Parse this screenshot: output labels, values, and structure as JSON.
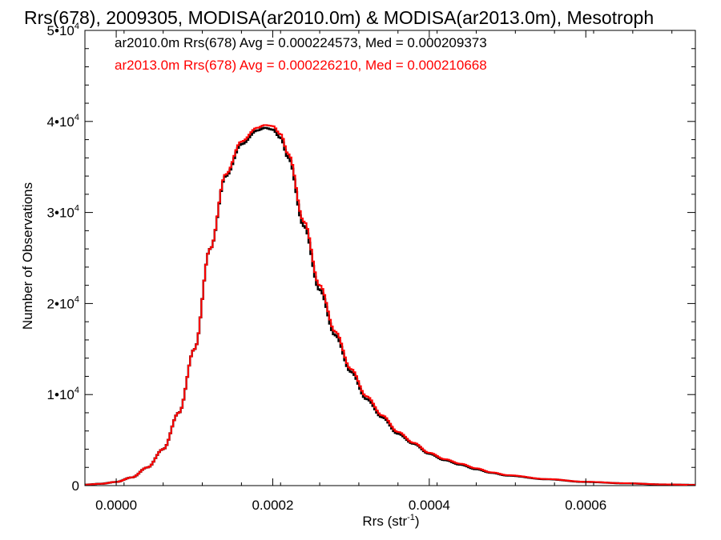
{
  "chart_data": {
    "type": "line",
    "step": true,
    "title": "Rrs(678), 2009305, MODISA(ar2010.0m) & MODISA(ar2013.0m), Mesotroph",
    "xlabel": "Rrs (str",
    "xlabel_sup": "-1",
    "xlabel_suffix": ")",
    "ylabel": "Number of Observations",
    "xlim": [
      -4e-05,
      0.00074
    ],
    "ylim": [
      0,
      50000
    ],
    "x_ticks": [
      0.0,
      0.0002,
      0.0004,
      0.0006
    ],
    "x_tick_labels": [
      "0.0000",
      "0.0002",
      "0.0004",
      "0.0006"
    ],
    "y_ticks": [
      0,
      10000,
      20000,
      30000,
      40000,
      50000
    ],
    "y_tick_labels": [
      {
        "base": "0",
        "exp": ""
      },
      {
        "base": "1•10",
        "exp": "4"
      },
      {
        "base": "2•10",
        "exp": "4"
      },
      {
        "base": "3•10",
        "exp": "4"
      },
      {
        "base": "4•10",
        "exp": "4"
      },
      {
        "base": "5•10",
        "exp": "4"
      }
    ],
    "grid": false,
    "legend_position": "top-left",
    "annotations": [
      {
        "text": "ar2010.0m Rrs(678) Avg = 0.000224573, Med = 0.000209373",
        "color": "#000000"
      },
      {
        "text": "ar2013.0m Rrs(678) Avg = 0.000226210, Med = 0.000210668",
        "color": "#ff0000"
      }
    ],
    "x": [
      -4e-05,
      -2e-05,
      0.0,
      2e-05,
      4e-05,
      6e-05,
      8e-05,
      0.0001,
      0.00012,
      0.00014,
      0.00016,
      0.00018,
      0.00019,
      0.0002,
      0.00021,
      0.00022,
      0.00024,
      0.00026,
      0.00028,
      0.0003,
      0.00032,
      0.00034,
      0.00036,
      0.00038,
      0.0004,
      0.00042,
      0.00044,
      0.00046,
      0.00048,
      0.0005,
      0.00055,
      0.0006,
      0.00065,
      0.0007,
      0.00074
    ],
    "series": [
      {
        "name": "ar2010.0m",
        "color": "#000000",
        "values": [
          100,
          200,
          400,
          900,
          2000,
          4000,
          8000,
          15000,
          26000,
          34000,
          37500,
          39000,
          39300,
          39100,
          38200,
          36000,
          28500,
          21500,
          16500,
          12500,
          9500,
          7500,
          5700,
          4600,
          3500,
          2800,
          2300,
          1800,
          1400,
          1100,
          700,
          400,
          250,
          120,
          80
        ]
      },
      {
        "name": "ar2013.0m",
        "color": "#ff0000",
        "values": [
          100,
          200,
          400,
          900,
          2000,
          4000,
          8000,
          15000,
          26000,
          34200,
          37800,
          39300,
          39600,
          39500,
          38600,
          36400,
          29000,
          22000,
          16900,
          12800,
          9800,
          7700,
          5900,
          4700,
          3600,
          2900,
          2400,
          1900,
          1450,
          1150,
          720,
          420,
          260,
          130,
          80
        ]
      }
    ]
  }
}
